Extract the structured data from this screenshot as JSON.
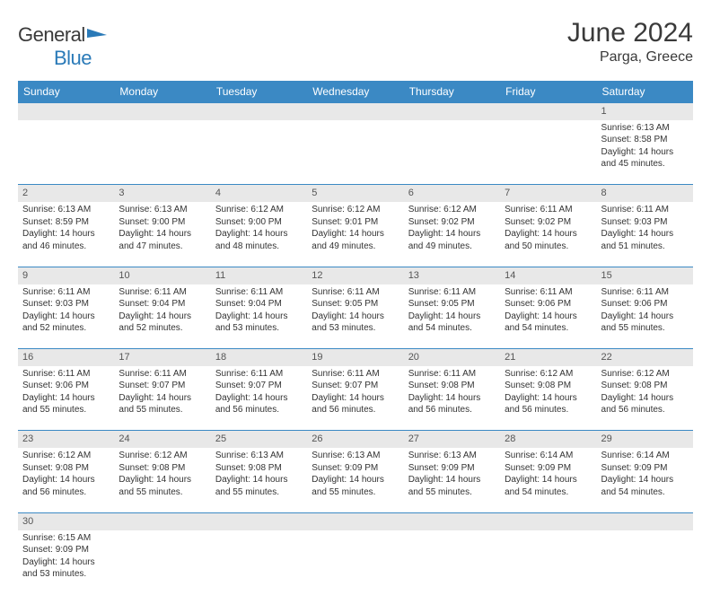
{
  "logo": {
    "text1": "General",
    "text2": "Blue",
    "flag_color": "#2a7ab8"
  },
  "title": "June 2024",
  "location": "Parga, Greece",
  "colors": {
    "header_bg": "#3b89c4",
    "header_text": "#ffffff",
    "daynum_bg": "#e8e8e8",
    "rule": "#3b89c4",
    "text": "#333333",
    "logo_gray": "#3a3a3a",
    "logo_blue": "#2a7ab8"
  },
  "typography": {
    "title_fontsize": 30,
    "location_fontsize": 16,
    "header_fontsize": 12,
    "daynum_fontsize": 11,
    "body_fontsize": 10
  },
  "dayHeaders": [
    "Sunday",
    "Monday",
    "Tuesday",
    "Wednesday",
    "Thursday",
    "Friday",
    "Saturday"
  ],
  "weeks": [
    [
      null,
      null,
      null,
      null,
      null,
      null,
      {
        "n": "1",
        "sunrise": "6:13 AM",
        "sunset": "8:58 PM",
        "daylight": "14 hours and 45 minutes."
      }
    ],
    [
      {
        "n": "2",
        "sunrise": "6:13 AM",
        "sunset": "8:59 PM",
        "daylight": "14 hours and 46 minutes."
      },
      {
        "n": "3",
        "sunrise": "6:13 AM",
        "sunset": "9:00 PM",
        "daylight": "14 hours and 47 minutes."
      },
      {
        "n": "4",
        "sunrise": "6:12 AM",
        "sunset": "9:00 PM",
        "daylight": "14 hours and 48 minutes."
      },
      {
        "n": "5",
        "sunrise": "6:12 AM",
        "sunset": "9:01 PM",
        "daylight": "14 hours and 49 minutes."
      },
      {
        "n": "6",
        "sunrise": "6:12 AM",
        "sunset": "9:02 PM",
        "daylight": "14 hours and 49 minutes."
      },
      {
        "n": "7",
        "sunrise": "6:11 AM",
        "sunset": "9:02 PM",
        "daylight": "14 hours and 50 minutes."
      },
      {
        "n": "8",
        "sunrise": "6:11 AM",
        "sunset": "9:03 PM",
        "daylight": "14 hours and 51 minutes."
      }
    ],
    [
      {
        "n": "9",
        "sunrise": "6:11 AM",
        "sunset": "9:03 PM",
        "daylight": "14 hours and 52 minutes."
      },
      {
        "n": "10",
        "sunrise": "6:11 AM",
        "sunset": "9:04 PM",
        "daylight": "14 hours and 52 minutes."
      },
      {
        "n": "11",
        "sunrise": "6:11 AM",
        "sunset": "9:04 PM",
        "daylight": "14 hours and 53 minutes."
      },
      {
        "n": "12",
        "sunrise": "6:11 AM",
        "sunset": "9:05 PM",
        "daylight": "14 hours and 53 minutes."
      },
      {
        "n": "13",
        "sunrise": "6:11 AM",
        "sunset": "9:05 PM",
        "daylight": "14 hours and 54 minutes."
      },
      {
        "n": "14",
        "sunrise": "6:11 AM",
        "sunset": "9:06 PM",
        "daylight": "14 hours and 54 minutes."
      },
      {
        "n": "15",
        "sunrise": "6:11 AM",
        "sunset": "9:06 PM",
        "daylight": "14 hours and 55 minutes."
      }
    ],
    [
      {
        "n": "16",
        "sunrise": "6:11 AM",
        "sunset": "9:06 PM",
        "daylight": "14 hours and 55 minutes."
      },
      {
        "n": "17",
        "sunrise": "6:11 AM",
        "sunset": "9:07 PM",
        "daylight": "14 hours and 55 minutes."
      },
      {
        "n": "18",
        "sunrise": "6:11 AM",
        "sunset": "9:07 PM",
        "daylight": "14 hours and 56 minutes."
      },
      {
        "n": "19",
        "sunrise": "6:11 AM",
        "sunset": "9:07 PM",
        "daylight": "14 hours and 56 minutes."
      },
      {
        "n": "20",
        "sunrise": "6:11 AM",
        "sunset": "9:08 PM",
        "daylight": "14 hours and 56 minutes."
      },
      {
        "n": "21",
        "sunrise": "6:12 AM",
        "sunset": "9:08 PM",
        "daylight": "14 hours and 56 minutes."
      },
      {
        "n": "22",
        "sunrise": "6:12 AM",
        "sunset": "9:08 PM",
        "daylight": "14 hours and 56 minutes."
      }
    ],
    [
      {
        "n": "23",
        "sunrise": "6:12 AM",
        "sunset": "9:08 PM",
        "daylight": "14 hours and 56 minutes."
      },
      {
        "n": "24",
        "sunrise": "6:12 AM",
        "sunset": "9:08 PM",
        "daylight": "14 hours and 55 minutes."
      },
      {
        "n": "25",
        "sunrise": "6:13 AM",
        "sunset": "9:08 PM",
        "daylight": "14 hours and 55 minutes."
      },
      {
        "n": "26",
        "sunrise": "6:13 AM",
        "sunset": "9:09 PM",
        "daylight": "14 hours and 55 minutes."
      },
      {
        "n": "27",
        "sunrise": "6:13 AM",
        "sunset": "9:09 PM",
        "daylight": "14 hours and 55 minutes."
      },
      {
        "n": "28",
        "sunrise": "6:14 AM",
        "sunset": "9:09 PM",
        "daylight": "14 hours and 54 minutes."
      },
      {
        "n": "29",
        "sunrise": "6:14 AM",
        "sunset": "9:09 PM",
        "daylight": "14 hours and 54 minutes."
      }
    ],
    [
      {
        "n": "30",
        "sunrise": "6:15 AM",
        "sunset": "9:09 PM",
        "daylight": "14 hours and 53 minutes."
      },
      null,
      null,
      null,
      null,
      null,
      null
    ]
  ],
  "labels": {
    "sunrise": "Sunrise:",
    "sunset": "Sunset:",
    "daylight": "Daylight:"
  }
}
